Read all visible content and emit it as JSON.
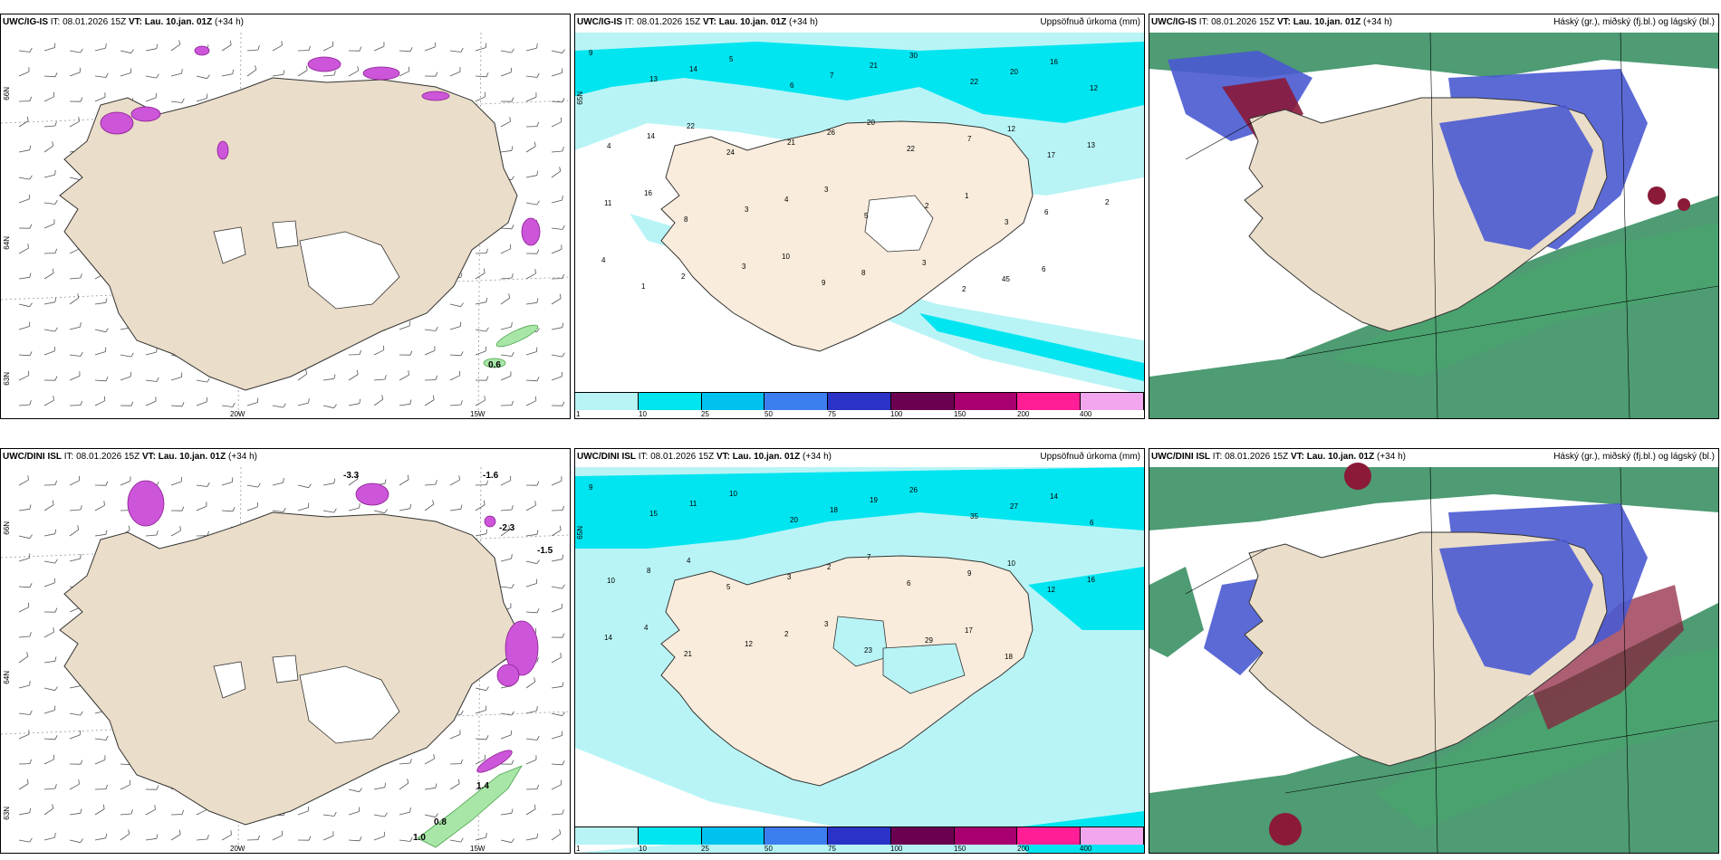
{
  "row1": {
    "wind": {
      "model": "UWC/IG-IS",
      "it_label": "IT:",
      "it": "08.01.2026 15Z",
      "vt_label": "VT:",
      "vt": "Lau. 10.jan. 01Z",
      "lead": "(+34 h)",
      "lat1": "66N",
      "lat2": "64N",
      "lat3": "63N",
      "lon1": "20W",
      "lon2": "15W",
      "vals": [
        "0.6"
      ]
    },
    "precip": {
      "model": "UWC/IG-IS",
      "it_label": "IT:",
      "it": "08.01.2026 15Z",
      "vt_label": "VT:",
      "vt": "Lau. 10.jan. 01Z",
      "lead": "(+34 h)",
      "title": "Uppsöfnuð úrkoma (mm)",
      "lat": "65N"
    },
    "cloud": {
      "model": "UWC/IG-IS",
      "it_label": "IT:",
      "it": "08.01.2026 15Z",
      "vt_label": "VT:",
      "vt": "Lau. 10.jan. 01Z",
      "lead": "(+34 h)",
      "title": "Háský (gr.), miðský (fj.bl.) og lágský (bl.)"
    }
  },
  "row2": {
    "wind": {
      "model": "UWC/DINI ISL",
      "it_label": "IT:",
      "it": "08.01.2026 15Z",
      "vt_label": "VT:",
      "vt": "Lau. 10.jan. 01Z",
      "lead": "(+34 h)",
      "lat1": "66N",
      "lat2": "64N",
      "lat3": "63N",
      "lon1": "20W",
      "lon2": "15W",
      "vals": [
        "-3.3",
        "-1.6",
        "-2.3",
        "-1.5",
        "1.0",
        "0.8",
        "1.4"
      ]
    },
    "precip": {
      "model": "UWC/DINI ISL",
      "it_label": "IT:",
      "it": "08.01.2026 15Z",
      "vt_label": "VT:",
      "vt": "Lau. 10.jan. 01Z",
      "lead": "(+34 h)",
      "title": "Uppsöfnuð úrkoma (mm)",
      "lat": "65N"
    },
    "cloud": {
      "model": "UWC/DINI ISL",
      "it_label": "IT:",
      "it": "08.01.2026 15Z",
      "vt_label": "VT:",
      "vt": "Lau. 10.jan. 01Z",
      "lead": "(+34 h)",
      "title": "Háský (gr.), miðský (fj.bl.) og lágský (bl.)"
    }
  },
  "colorbar": {
    "ticks": [
      "1",
      "10",
      "25",
      "50",
      "75",
      "100",
      "150",
      "200",
      "400"
    ],
    "colors": [
      "#b8f4f6",
      "#00e5f0",
      "#00c2ee",
      "#3c7df0",
      "#2a32c8",
      "#6c0050",
      "#a8006e",
      "#ff1e96",
      "#f2a6ee"
    ]
  },
  "precip_numbers_top": [
    "9",
    "13",
    "14",
    "5",
    "6",
    "7",
    "21",
    "30",
    "22",
    "20",
    "16",
    "12",
    "4",
    "14",
    "22",
    "24",
    "21",
    "26",
    "20",
    "22",
    "7",
    "12",
    "17",
    "13",
    "11",
    "16",
    "8",
    "3",
    "4",
    "3",
    "5",
    "2",
    "1",
    "3",
    "6",
    "2",
    "4",
    "1",
    "2",
    "3",
    "10",
    "9",
    "8",
    "3",
    "2",
    "45",
    "6"
  ],
  "precip_numbers_bottom": [
    "9",
    "15",
    "11",
    "10",
    "20",
    "18",
    "19",
    "26",
    "35",
    "27",
    "14",
    "6",
    "10",
    "8",
    "4",
    "5",
    "3",
    "2",
    "7",
    "6",
    "9",
    "10",
    "12",
    "16",
    "14",
    "4",
    "21",
    "12",
    "2",
    "3",
    "23",
    "29",
    "17",
    "18"
  ]
}
